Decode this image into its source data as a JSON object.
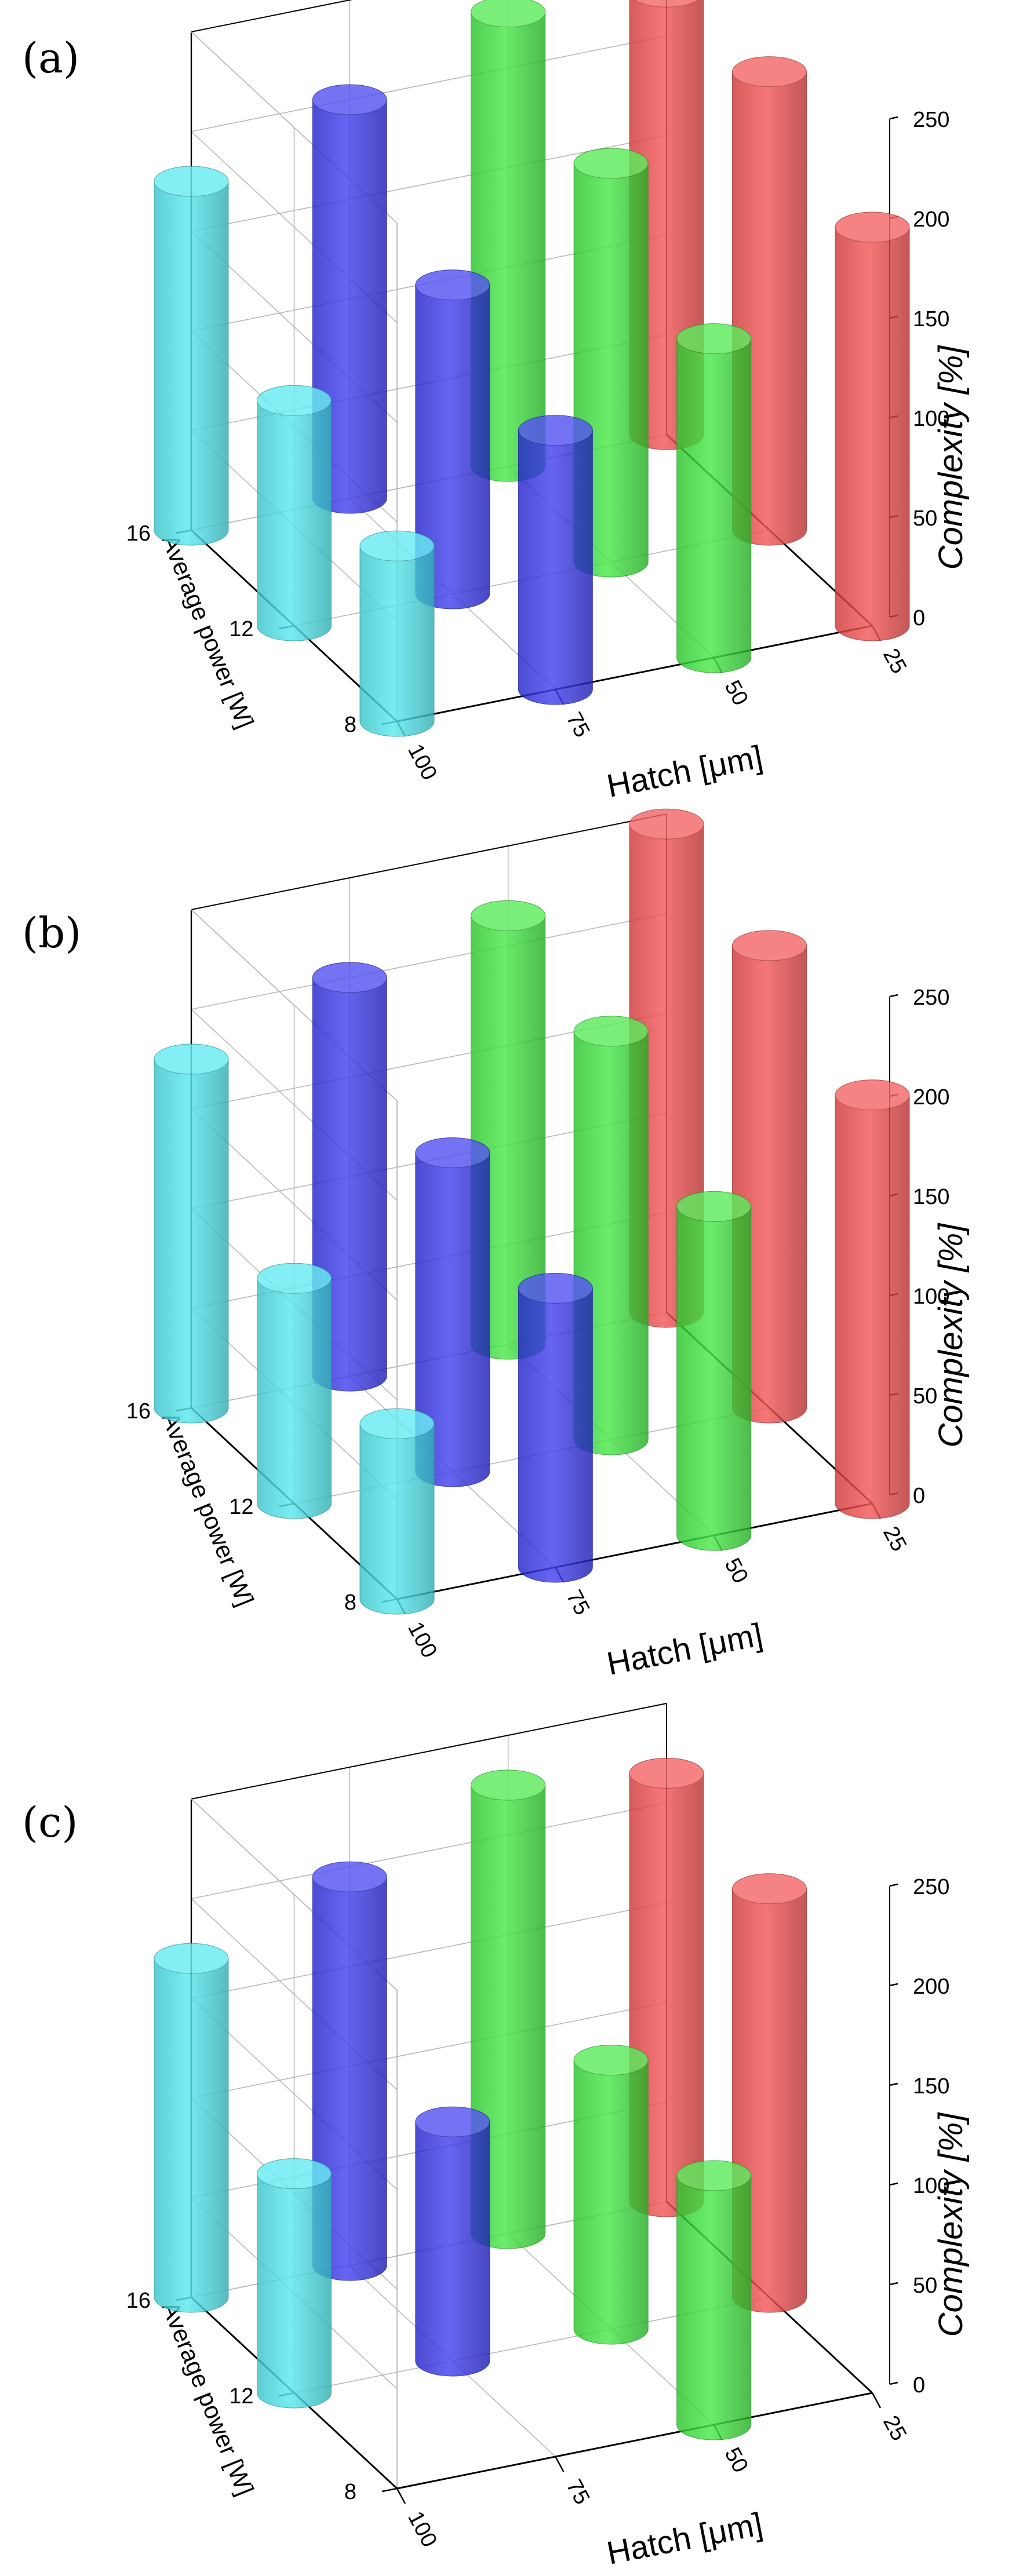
{
  "chart_data": [
    {
      "type": "bar3d",
      "panel_label": "(a)",
      "xlabel": "Hatch [μm]",
      "ylabel": "Average power [W]",
      "zlabel": "Complexity [%]",
      "x_ticks": [
        "100",
        "75",
        "50",
        "25"
      ],
      "y_ticks": [
        "8",
        "12",
        "16"
      ],
      "z_ticks": [
        "0",
        "50",
        "100",
        "150",
        "200",
        "250"
      ],
      "zlim": [
        0,
        250
      ],
      "series": [
        {
          "name": "",
          "color": "#44e6ee",
          "hatch": 100,
          "points": [
            [
              8,
              88
            ],
            [
              12,
              113
            ],
            [
              16,
              175
            ]
          ]
        },
        {
          "name": "",
          "color": "#2a2aee",
          "hatch": 75,
          "points": [
            [
              8,
              130
            ],
            [
              12,
              155
            ],
            [
              16,
              200
            ]
          ]
        },
        {
          "name": "",
          "color": "#33e633",
          "hatch": 50,
          "points": [
            [
              8,
              160
            ],
            [
              12,
              200
            ],
            [
              16,
              228
            ]
          ]
        },
        {
          "name": "",
          "color": "#f24242",
          "hatch": 25,
          "points": [
            [
              8,
              200
            ],
            [
              12,
              230
            ],
            [
              16,
              222
            ]
          ]
        }
      ]
    },
    {
      "type": "bar3d",
      "panel_label": "(b)",
      "xlabel": "Hatch [μm]",
      "ylabel": "Average power [W]",
      "zlabel": "Complexity [%]",
      "x_ticks": [
        "100",
        "75",
        "50",
        "25"
      ],
      "y_ticks": [
        "8",
        "12",
        "16"
      ],
      "z_ticks": [
        "0",
        "50",
        "100",
        "150",
        "200",
        "250"
      ],
      "zlim": [
        0,
        250
      ],
      "series": [
        {
          "name": "",
          "color": "#44e6ee",
          "hatch": 100,
          "points": [
            [
              8,
              88
            ],
            [
              12,
              113
            ],
            [
              16,
              175
            ]
          ]
        },
        {
          "name": "",
          "color": "#2a2aee",
          "hatch": 75,
          "points": [
            [
              8,
              140
            ],
            [
              12,
              160
            ],
            [
              16,
              200
            ]
          ]
        },
        {
          "name": "",
          "color": "#33e633",
          "hatch": 50,
          "points": [
            [
              8,
              165
            ],
            [
              12,
              205
            ],
            [
              16,
              215
            ]
          ]
        },
        {
          "name": "",
          "color": "#f24242",
          "hatch": 25,
          "points": [
            [
              8,
              205
            ],
            [
              12,
              232
            ],
            [
              16,
              245
            ]
          ]
        }
      ]
    },
    {
      "type": "bar3d",
      "panel_label": "(c)",
      "xlabel": "Hatch [μm]",
      "ylabel": "Average power [W]",
      "zlabel": "Complexity [%]",
      "x_ticks": [
        "100",
        "75",
        "50",
        "25"
      ],
      "y_ticks": [
        "8",
        "12",
        "16"
      ],
      "z_ticks": [
        "0",
        "50",
        "100",
        "150",
        "200",
        "250"
      ],
      "zlim": [
        0,
        250
      ],
      "series": [
        {
          "name": "",
          "color": "#44e6ee",
          "hatch": 100,
          "points": [
            [
              12,
              110
            ],
            [
              16,
              170
            ]
          ]
        },
        {
          "name": "",
          "color": "#2a2aee",
          "hatch": 75,
          "points": [
            [
              12,
              120
            ],
            [
              16,
              195
            ]
          ]
        },
        {
          "name": "",
          "color": "#33e633",
          "hatch": 50,
          "points": [
            [
              8,
              125
            ],
            [
              12,
              135
            ],
            [
              16,
              225
            ]
          ]
        },
        {
          "name": "",
          "color": "#f24242",
          "hatch": 25,
          "points": [
            [
              12,
              205
            ],
            [
              16,
              215
            ]
          ]
        }
      ]
    }
  ]
}
